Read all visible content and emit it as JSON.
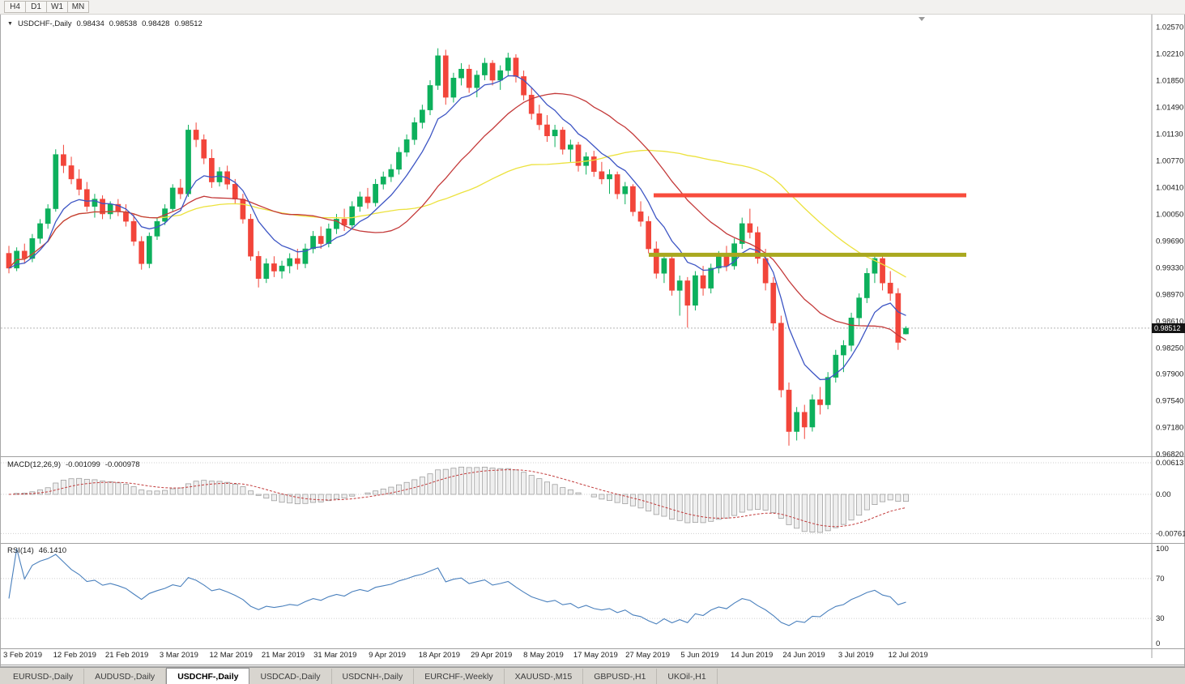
{
  "toolbar": {
    "timeframes": [
      "H4",
      "D1",
      "W1",
      "MN"
    ]
  },
  "chart": {
    "header": {
      "symbol_title": "USDCHF-,Daily",
      "open": "0.98434",
      "high": "0.98538",
      "low": "0.98428",
      "close": "0.98512"
    },
    "price_axis": {
      "labels": [
        "1.02570",
        "1.02210",
        "1.01850",
        "1.01490",
        "1.01130",
        "1.00770",
        "1.00410",
        "1.00050",
        "0.99690",
        "0.99330",
        "0.98970",
        "0.98610",
        "0.98250",
        "0.97900",
        "0.97540",
        "0.97180",
        "0.96820"
      ],
      "current_price_label": "0.98512"
    }
  },
  "macd": {
    "name": "MACD(12,26,9)",
    "main_value": "-0.001099",
    "signal_value": "-0.000978",
    "axis_labels": [
      "0.00613",
      "0.00",
      "-0.00761"
    ]
  },
  "rsi": {
    "name": "RSI(14)",
    "value": "46.1410",
    "axis_labels": [
      "100",
      "70",
      "30",
      "0"
    ]
  },
  "date_axis": [
    "3 Feb 2019",
    "12 Feb 2019",
    "21 Feb 2019",
    "3 Mar 2019",
    "12 Mar 2019",
    "21 Mar 2019",
    "31 Mar 2019",
    "9 Apr 2019",
    "18 Apr 2019",
    "29 Apr 2019",
    "8 May 2019",
    "17 May 2019",
    "27 May 2019",
    "5 Jun 2019",
    "14 Jun 2019",
    "24 Jun 2019",
    "3 Jul 2019",
    "12 Jul 2019"
  ],
  "tabs": {
    "active": "USDCHF-,Daily",
    "items": [
      "EURUSD-,Daily",
      "AUDUSD-,Daily",
      "USDCHF-,Daily",
      "USDCAD-,Daily",
      "USDCNH-,Daily",
      "EURCHF-,Weekly",
      "XAUUSD-,M15",
      "GBPUSD-,H1",
      "UKOil-,H1"
    ]
  },
  "chart_data": {
    "type": "candlestick",
    "symbol": "USDCHF",
    "timeframe": "Daily",
    "price_range": [
      0.9682,
      1.0257
    ],
    "current_price": 0.98512,
    "resistance": {
      "price": 1.003,
      "color": "#f84c3c"
    },
    "support": {
      "price": 0.995,
      "color": "#a9a81f"
    },
    "colors": {
      "bull": "#0db05c",
      "bear": "#f2453a",
      "ma_fast": "#3d55c4",
      "ma_medium": "#c43a3a",
      "ma_slow": "#ece23e",
      "macd_signal": "#c23b3b",
      "macd_hist_fill": "#efefef",
      "macd_hist_stroke": "#9f9f9f",
      "rsi_line": "#4a80bd"
    },
    "moving_averages": [
      {
        "name": "fast",
        "type": "ema",
        "period": 8
      },
      {
        "name": "medium",
        "type": "sma",
        "period": 20
      },
      {
        "name": "slow",
        "type": "sma",
        "period": 45
      }
    ],
    "indicators": [
      {
        "name": "MACD",
        "params": [
          12,
          26,
          9
        ]
      },
      {
        "name": "RSI",
        "params": [
          14
        ]
      }
    ],
    "ohlc": [
      [
        0.9952,
        0.9962,
        0.9925,
        0.9932
      ],
      [
        0.9932,
        0.996,
        0.9928,
        0.9955
      ],
      [
        0.9955,
        0.9965,
        0.9938,
        0.9945
      ],
      [
        0.9945,
        0.9978,
        0.994,
        0.9972
      ],
      [
        0.9972,
        0.9998,
        0.9965,
        0.9992
      ],
      [
        0.9992,
        1.0018,
        0.9985,
        1.0012
      ],
      [
        1.0012,
        1.0092,
        1.0008,
        1.0085
      ],
      [
        1.0085,
        1.0098,
        1.006,
        1.007
      ],
      [
        1.007,
        1.0082,
        1.0045,
        1.0052
      ],
      [
        1.0052,
        1.0065,
        1.003,
        1.0038
      ],
      [
        1.0038,
        1.0048,
        1.0008,
        1.0015
      ],
      [
        1.0015,
        1.0032,
        1.0,
        1.0025
      ],
      [
        1.0025,
        1.003,
        0.9998,
        1.0005
      ],
      [
        1.0005,
        1.0022,
        0.9998,
        1.0018
      ],
      [
        1.0018,
        1.0025,
        1.0002,
        1.0008
      ],
      [
        1.0008,
        1.0018,
        0.9988,
        0.9995
      ],
      [
        0.9995,
        1.0005,
        0.9962,
        0.9968
      ],
      [
        0.9968,
        0.9975,
        0.993,
        0.9938
      ],
      [
        0.9938,
        0.998,
        0.9932,
        0.9975
      ],
      [
        0.9975,
        1.0,
        0.997,
        0.9995
      ],
      [
        0.9995,
        1.0018,
        0.999,
        1.0012
      ],
      [
        1.0012,
        1.0045,
        1.0008,
        1.004
      ],
      [
        1.004,
        1.0052,
        1.0025,
        1.0032
      ],
      [
        1.0032,
        1.0125,
        1.0028,
        1.0118
      ],
      [
        1.0118,
        1.0128,
        1.0095,
        1.0105
      ],
      [
        1.0105,
        1.0112,
        1.0072,
        1.008
      ],
      [
        1.008,
        1.0092,
        1.004,
        1.0048
      ],
      [
        1.0048,
        1.0068,
        1.0042,
        1.0062
      ],
      [
        1.0062,
        1.007,
        1.0038,
        1.0045
      ],
      [
        1.0045,
        1.0052,
        1.0018,
        1.0025
      ],
      [
        1.0025,
        1.0032,
        0.9992,
        0.9998
      ],
      [
        0.9998,
        1.0005,
        0.9942,
        0.9948
      ],
      [
        0.9948,
        0.9955,
        0.9906,
        0.9918
      ],
      [
        0.9918,
        0.9945,
        0.9912,
        0.9938
      ],
      [
        0.9938,
        0.9948,
        0.992,
        0.9928
      ],
      [
        0.9928,
        0.9942,
        0.9918,
        0.9935
      ],
      [
        0.9935,
        0.9952,
        0.9925,
        0.9945
      ],
      [
        0.9945,
        0.9958,
        0.993,
        0.9938
      ],
      [
        0.9938,
        0.9965,
        0.9932,
        0.9958
      ],
      [
        0.9958,
        0.9982,
        0.9952,
        0.9975
      ],
      [
        0.9975,
        0.9988,
        0.9958,
        0.9965
      ],
      [
        0.9965,
        0.9992,
        0.996,
        0.9985
      ],
      [
        0.9985,
        1.0005,
        0.9978,
        0.9998
      ],
      [
        0.9998,
        1.0012,
        0.9982,
        0.999
      ],
      [
        0.999,
        1.0022,
        0.9985,
        1.0015
      ],
      [
        1.0015,
        1.0035,
        1.0008,
        1.0028
      ],
      [
        1.0028,
        1.004,
        1.0012,
        1.002
      ],
      [
        1.002,
        1.0052,
        1.0015,
        1.0045
      ],
      [
        1.0045,
        1.0062,
        1.0038,
        1.0055
      ],
      [
        1.0055,
        1.0072,
        1.0048,
        1.0065
      ],
      [
        1.0065,
        1.0095,
        1.0058,
        1.0088
      ],
      [
        1.0088,
        1.0112,
        1.0082,
        1.0105
      ],
      [
        1.0105,
        1.0135,
        1.0098,
        1.0128
      ],
      [
        1.0128,
        1.0152,
        1.012,
        1.0145
      ],
      [
        1.0145,
        1.0185,
        1.0138,
        1.0178
      ],
      [
        1.0178,
        1.0228,
        1.0172,
        1.0218
      ],
      [
        1.0218,
        1.0226,
        1.0152,
        1.0162
      ],
      [
        1.0162,
        1.0195,
        1.0155,
        1.0188
      ],
      [
        1.0188,
        1.0208,
        1.0178,
        1.02
      ],
      [
        1.02,
        1.0206,
        1.0168,
        1.0175
      ],
      [
        1.0175,
        1.0198,
        1.0162,
        1.0192
      ],
      [
        1.0192,
        1.0215,
        1.0185,
        1.0208
      ],
      [
        1.0208,
        1.0212,
        1.0178,
        1.0185
      ],
      [
        1.0185,
        1.0205,
        1.0172,
        1.0198
      ],
      [
        1.0198,
        1.0222,
        1.019,
        1.0215
      ],
      [
        1.0215,
        1.022,
        1.0182,
        1.019
      ],
      [
        1.019,
        1.0198,
        1.0158,
        1.0165
      ],
      [
        1.0165,
        1.0175,
        1.0132,
        1.014
      ],
      [
        1.014,
        1.0152,
        1.0118,
        1.0125
      ],
      [
        1.0125,
        1.0138,
        1.0102,
        1.011
      ],
      [
        1.011,
        1.0125,
        1.0095,
        1.0118
      ],
      [
        1.0118,
        1.0122,
        1.0085,
        1.0092
      ],
      [
        1.0092,
        1.0105,
        1.0075,
        1.0098
      ],
      [
        1.0098,
        1.0102,
        1.0062,
        1.007
      ],
      [
        1.007,
        1.0088,
        1.0058,
        1.0082
      ],
      [
        1.0082,
        1.009,
        1.0055,
        1.0062
      ],
      [
        1.0062,
        1.0075,
        1.0045,
        1.0052
      ],
      [
        1.0052,
        1.0065,
        1.0032,
        1.0058
      ],
      [
        1.0058,
        1.0062,
        1.0025,
        1.0032
      ],
      [
        1.0032,
        1.0048,
        1.0018,
        1.0042
      ],
      [
        1.0042,
        1.0045,
        1.0002,
        1.0008
      ],
      [
        1.0008,
        1.0022,
        0.9988,
        0.9995
      ],
      [
        0.9995,
        1.0002,
        0.9952,
        0.9958
      ],
      [
        0.9958,
        0.9968,
        0.9918,
        0.9925
      ],
      [
        0.9925,
        0.9952,
        0.9912,
        0.9945
      ],
      [
        0.9945,
        0.995,
        0.9895,
        0.9902
      ],
      [
        0.9902,
        0.9922,
        0.9868,
        0.9915
      ],
      [
        0.9915,
        0.992,
        0.9852,
        0.9882
      ],
      [
        0.9882,
        0.9928,
        0.9875,
        0.9922
      ],
      [
        0.9922,
        0.9935,
        0.9895,
        0.9905
      ],
      [
        0.9905,
        0.9938,
        0.9898,
        0.9932
      ],
      [
        0.9932,
        0.9955,
        0.9925,
        0.9948
      ],
      [
        0.9948,
        0.9962,
        0.9928,
        0.9935
      ],
      [
        0.9935,
        0.9972,
        0.993,
        0.9965
      ],
      [
        0.9965,
        1.0,
        0.9958,
        0.9992
      ],
      [
        0.9992,
        1.0012,
        0.9972,
        0.998
      ],
      [
        0.998,
        0.9988,
        0.9938,
        0.9945
      ],
      [
        0.9945,
        0.9958,
        0.9902,
        0.9912
      ],
      [
        0.9912,
        0.992,
        0.9848,
        0.9858
      ],
      [
        0.9858,
        0.9868,
        0.9758,
        0.9768
      ],
      [
        0.9768,
        0.9778,
        0.9693,
        0.9712
      ],
      [
        0.9712,
        0.9745,
        0.97,
        0.9738
      ],
      [
        0.9738,
        0.9748,
        0.9702,
        0.9718
      ],
      [
        0.9718,
        0.9762,
        0.9712,
        0.9755
      ],
      [
        0.9755,
        0.9772,
        0.9735,
        0.9748
      ],
      [
        0.9748,
        0.9792,
        0.9742,
        0.9785
      ],
      [
        0.9785,
        0.9822,
        0.9778,
        0.9815
      ],
      [
        0.9815,
        0.9835,
        0.9792,
        0.9828
      ],
      [
        0.9828,
        0.9872,
        0.982,
        0.9865
      ],
      [
        0.9865,
        0.9898,
        0.9855,
        0.9892
      ],
      [
        0.9892,
        0.9932,
        0.9885,
        0.9925
      ],
      [
        0.9925,
        0.9952,
        0.9912,
        0.9945
      ],
      [
        0.9945,
        0.995,
        0.9902,
        0.9912
      ],
      [
        0.9912,
        0.9928,
        0.9888,
        0.9898
      ],
      [
        0.9898,
        0.9905,
        0.9822,
        0.9832
      ],
      [
        0.98434,
        0.98538,
        0.98428,
        0.98512
      ]
    ]
  }
}
